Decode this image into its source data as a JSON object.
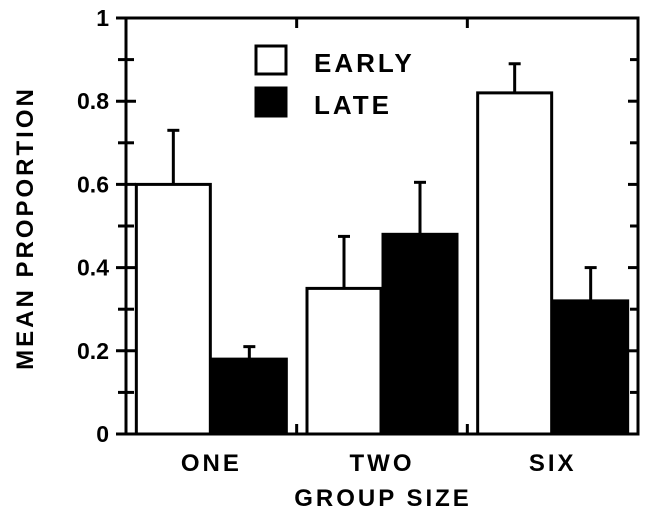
{
  "chart_data": {
    "type": "bar",
    "title": "",
    "xlabel": "GROUP SIZE",
    "ylabel": "MEAN PROPORTION",
    "ylim": [
      0,
      1
    ],
    "yticks": [
      0,
      0.2,
      0.4,
      0.6,
      0.8,
      1
    ],
    "ytick_labels": [
      "0",
      "0.2",
      "0.4",
      "0.6",
      "0.8",
      "1"
    ],
    "categories": [
      "ONE",
      "TWO",
      "SIX"
    ],
    "series": [
      {
        "name": "EARLY",
        "values": [
          0.6,
          0.35,
          0.82
        ],
        "errors": [
          0.13,
          0.125,
          0.07
        ],
        "color": "#ffffff"
      },
      {
        "name": "LATE",
        "values": [
          0.18,
          0.48,
          0.32
        ],
        "errors": [
          0.03,
          0.125,
          0.08
        ],
        "color": "#000000"
      }
    ],
    "legend_position": "top-center",
    "grid": false,
    "error_bars": "upper"
  }
}
